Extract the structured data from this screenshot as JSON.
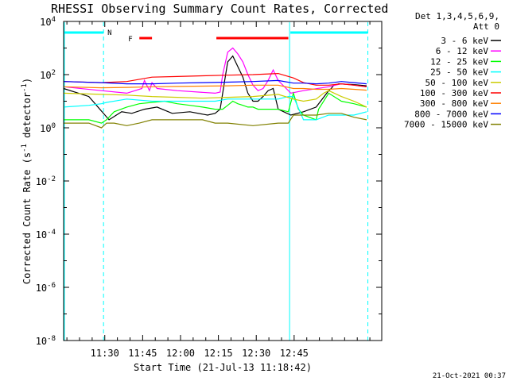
{
  "chart_data": {
    "type": "line",
    "title": "RHESSI Observing Summary Count Rates, Corrected",
    "xlabel": "Start Time (21-Jul-13 11:18:42)",
    "ylabel_prefix": "Corrected Count Rate (s",
    "ylabel_sup1": "-1",
    "ylabel_mid": " detector",
    "ylabel_sup2": "-1",
    "ylabel_suffix": ")",
    "y_scale": "log",
    "ylim": [
      1e-08,
      10000.0
    ],
    "x_range_min": [
      -5,
      121
    ],
    "x_ticks": [
      {
        "min": 11.3,
        "label": "11:30"
      },
      {
        "min": 26.3,
        "label": "11:45"
      },
      {
        "min": 41.3,
        "label": "12:00"
      },
      {
        "min": 56.3,
        "label": "12:15"
      },
      {
        "min": 71.3,
        "label": "12:30"
      },
      {
        "min": 86.3,
        "label": "12:45"
      }
    ],
    "y_ticks": [
      {
        "exp": 4,
        "label": "10",
        "sup": "4"
      },
      {
        "exp": 2,
        "label": "10",
        "sup": "2"
      },
      {
        "exp": 0,
        "label": "10",
        "sup": "0"
      },
      {
        "exp": -2,
        "label": "10",
        "sup": "-2"
      },
      {
        "exp": -4,
        "label": "10",
        "sup": "-4"
      },
      {
        "exp": -6,
        "label": "10",
        "sup": "-6"
      },
      {
        "exp": -8,
        "label": "10",
        "sup": "-8"
      }
    ],
    "legend_position": "right",
    "legend_header": [
      "Det 1,3,4,5,6,9,",
      "Att 0"
    ],
    "series": [
      {
        "name": "3 - 6 keV",
        "color": "#000000",
        "x": [
          -5,
          5,
          13,
          18,
          22,
          27,
          32,
          38,
          45,
          52,
          55,
          57,
          58,
          59,
          60,
          62,
          64,
          66,
          68,
          70,
          72,
          74,
          76,
          78,
          80,
          85,
          90,
          95,
          100,
          101,
          102,
          104,
          110,
          115
        ],
        "y": [
          30,
          15,
          2,
          4,
          3.5,
          5,
          6,
          3.5,
          4,
          3,
          3.5,
          5,
          20,
          80,
          300,
          500,
          200,
          80,
          20,
          10,
          10,
          15,
          25,
          30,
          5,
          3,
          4,
          6,
          25,
          30,
          40,
          45,
          42,
          38
        ]
      },
      {
        "name": "6 - 12 keV",
        "color": "#ff00ff",
        "x": [
          -5,
          10,
          20,
          26,
          27,
          29,
          30,
          32,
          40,
          55,
          57,
          58,
          60,
          62,
          64,
          66,
          68,
          70,
          72,
          74,
          76,
          78,
          80,
          85,
          90,
          100,
          105,
          110,
          115
        ],
        "y": [
          35,
          25,
          20,
          30,
          60,
          25,
          50,
          30,
          25,
          20,
          22,
          100,
          700,
          1000,
          600,
          300,
          100,
          40,
          25,
          30,
          60,
          150,
          60,
          20,
          25,
          35,
          45,
          40,
          35
        ]
      },
      {
        "name": "12 - 25 keV",
        "color": "#00ff00",
        "x": [
          -5,
          5,
          10,
          12,
          15,
          20,
          25,
          30,
          35,
          40,
          45,
          50,
          55,
          58,
          60,
          62,
          64,
          66,
          68,
          70,
          72,
          74,
          76,
          80,
          84,
          86,
          88,
          90,
          95,
          96,
          100,
          105,
          110,
          115
        ],
        "y": [
          2,
          2,
          1.5,
          2,
          4,
          6,
          8,
          9,
          10,
          8,
          7,
          6,
          5,
          5,
          7,
          10,
          8,
          7,
          6,
          6,
          5,
          5,
          5,
          5,
          4,
          20,
          5,
          3,
          2,
          5,
          20,
          10,
          8,
          6
        ]
      },
      {
        "name": "25 - 50 keV",
        "color": "#00ffff",
        "x": [
          -5,
          5,
          10,
          12,
          20,
          30,
          40,
          50,
          55,
          60,
          70,
          80,
          84,
          86,
          90,
          95,
          100,
          105,
          110,
          115
        ],
        "y": [
          6,
          7,
          8,
          9,
          12,
          10,
          10,
          10,
          10,
          12,
          12,
          12,
          15,
          15,
          2,
          2,
          3,
          3,
          3,
          4
        ]
      },
      {
        "name": "50 - 100 keV",
        "color": "#cccc00",
        "x": [
          -5,
          10,
          20,
          30,
          40,
          50,
          60,
          70,
          80,
          86,
          90,
          95,
          98,
          100,
          105,
          110,
          115
        ],
        "y": [
          20,
          18,
          17,
          15,
          14,
          13,
          14,
          15,
          18,
          12,
          10,
          12,
          20,
          25,
          15,
          10,
          6
        ]
      },
      {
        "name": "100 - 300 keV",
        "color": "#ff0000",
        "x": [
          -5,
          10,
          20,
          30,
          40,
          50,
          60,
          70,
          80,
          86,
          90,
          95,
          100,
          105,
          110,
          115
        ],
        "y": [
          55,
          50,
          55,
          80,
          85,
          90,
          95,
          100,
          110,
          75,
          50,
          40,
          40,
          45,
          40,
          35
        ]
      },
      {
        "name": "300 - 800 keV",
        "color": "#ff8000",
        "x": [
          -5,
          10,
          20,
          30,
          40,
          50,
          60,
          70,
          80,
          86,
          90,
          95,
          100,
          105,
          110,
          115
        ],
        "y": [
          35,
          32,
          33,
          35,
          36,
          37,
          38,
          40,
          40,
          30,
          30,
          28,
          28,
          30,
          28,
          26
        ]
      },
      {
        "name": "800 - 7000 keV",
        "color": "#0000ff",
        "x": [
          -5,
          10,
          20,
          30,
          40,
          50,
          60,
          70,
          80,
          86,
          90,
          95,
          100,
          105,
          110,
          115
        ],
        "y": [
          55,
          50,
          45,
          45,
          48,
          50,
          52,
          55,
          60,
          48,
          48,
          45,
          48,
          55,
          50,
          45
        ]
      },
      {
        "name": "7000 - 15000 keV",
        "color": "#808000",
        "x": [
          -5,
          5,
          10,
          12,
          15,
          20,
          25,
          30,
          40,
          50,
          55,
          60,
          70,
          80,
          84,
          86,
          88,
          90,
          95,
          100,
          105,
          110,
          115
        ],
        "y": [
          1.5,
          1.5,
          1,
          1.5,
          1.5,
          1.2,
          1.5,
          2,
          2,
          2,
          1.5,
          1.5,
          1.2,
          1.5,
          1.5,
          3,
          3,
          3,
          3,
          3.5,
          3.5,
          2.5,
          2
        ]
      }
    ],
    "annotations": {
      "night_label": "N",
      "flare_label": "F",
      "night_intervals": [
        [
          -5,
          10.8
        ],
        [
          84.5,
          115.5
        ]
      ],
      "flare_intervals": [
        [
          25,
          30
        ],
        [
          55.5,
          84
        ]
      ],
      "dashed_lines": [
        10.8,
        115.5
      ],
      "solid_lines": [
        -5,
        84.5
      ],
      "colors": {
        "night": "#00ffff",
        "flare": "#ff0000"
      }
    },
    "footer_date": "21-Oct-2021 00:37"
  }
}
